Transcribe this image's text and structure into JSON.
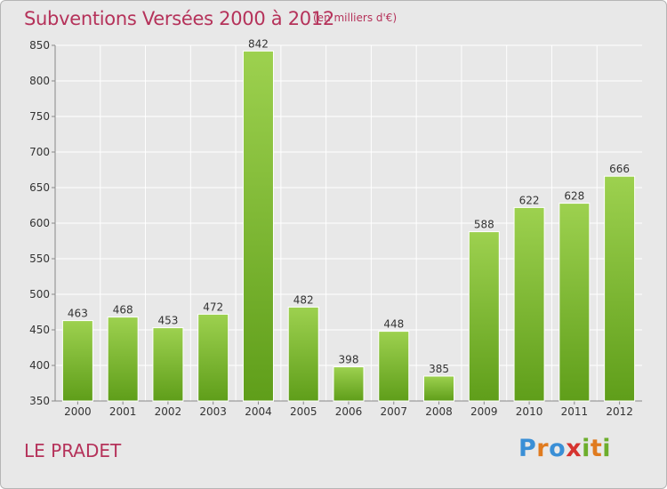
{
  "header": {
    "title": "Subventions Versées 2000 à 2012",
    "unit_note": "(en milliers d'€)"
  },
  "footer": {
    "place": "LE PRADET",
    "logo_text": "Proxiti"
  },
  "colors": {
    "title": "#b5325a",
    "bar_light": "#9dd14f",
    "bar_dark": "#5f9e1a",
    "background": "#e8e8e8"
  },
  "chart_data": {
    "type": "bar",
    "title": "Subventions Versées 2000 à 2012",
    "subtitle": "(en milliers d'€)",
    "categories": [
      "2000",
      "2001",
      "2002",
      "2003",
      "2004",
      "2005",
      "2006",
      "2007",
      "2008",
      "2009",
      "2010",
      "2011",
      "2012"
    ],
    "values": [
      463,
      468,
      453,
      472,
      842,
      482,
      398,
      448,
      385,
      588,
      622,
      628,
      666
    ],
    "ylim": [
      350,
      850
    ],
    "yticks": [
      350,
      400,
      450,
      500,
      550,
      600,
      650,
      700,
      750,
      800,
      850
    ],
    "grid": true,
    "data_labels": true
  }
}
